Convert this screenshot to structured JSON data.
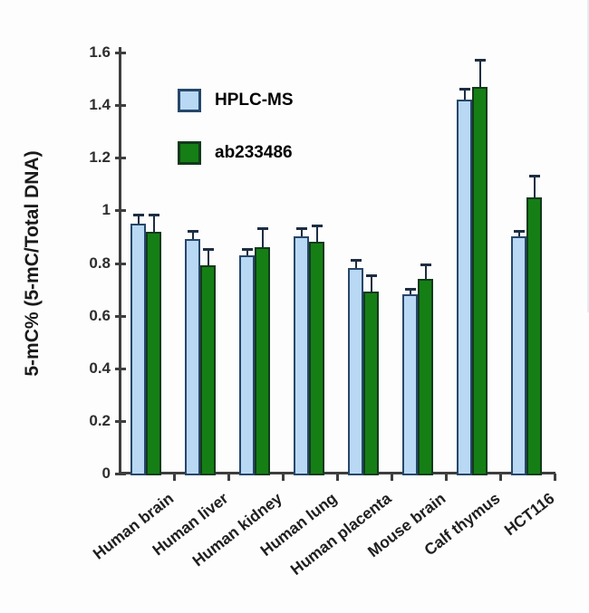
{
  "figure": {
    "background": "#fdfdfd",
    "axis_color": "#3e3e3e",
    "error_bar_color": "#1d2e42"
  },
  "chart_data": {
    "type": "bar",
    "title": "",
    "xlabel": "",
    "ylabel": "5-mC% (5-mC/Total DNA)",
    "ylim": [
      0,
      1.6
    ],
    "ytick_values": [
      0,
      0.2,
      0.4,
      0.6,
      0.8,
      1.0,
      1.2,
      1.4,
      1.6
    ],
    "ytick_labels": [
      "0",
      "0.2",
      "0.4",
      "0.6",
      "0.8",
      "1",
      "1.2",
      "1.4",
      "1.6"
    ],
    "grid": false,
    "legend_position": "upper-left-inside",
    "categories": [
      "Human brain",
      "Human liver",
      "Human kidney",
      "Human lung",
      "Human placenta",
      "Mouse brain",
      "Calf thymus",
      "HCT116"
    ],
    "series": [
      {
        "name": "HPLC-MS",
        "fill": "#b9d8f3",
        "border": "#27476b",
        "values": [
          0.95,
          0.89,
          0.83,
          0.9,
          0.78,
          0.68,
          1.42,
          0.9
        ],
        "errors": [
          0.03,
          0.03,
          0.02,
          0.03,
          0.03,
          0.02,
          0.04,
          0.02
        ]
      },
      {
        "name": "ab233486",
        "fill": "#157f15",
        "border": "#123a1c",
        "values": [
          0.92,
          0.79,
          0.86,
          0.88,
          0.69,
          0.74,
          1.47,
          1.05
        ],
        "errors": [
          0.06,
          0.06,
          0.07,
          0.06,
          0.06,
          0.05,
          0.1,
          0.08
        ]
      }
    ]
  }
}
